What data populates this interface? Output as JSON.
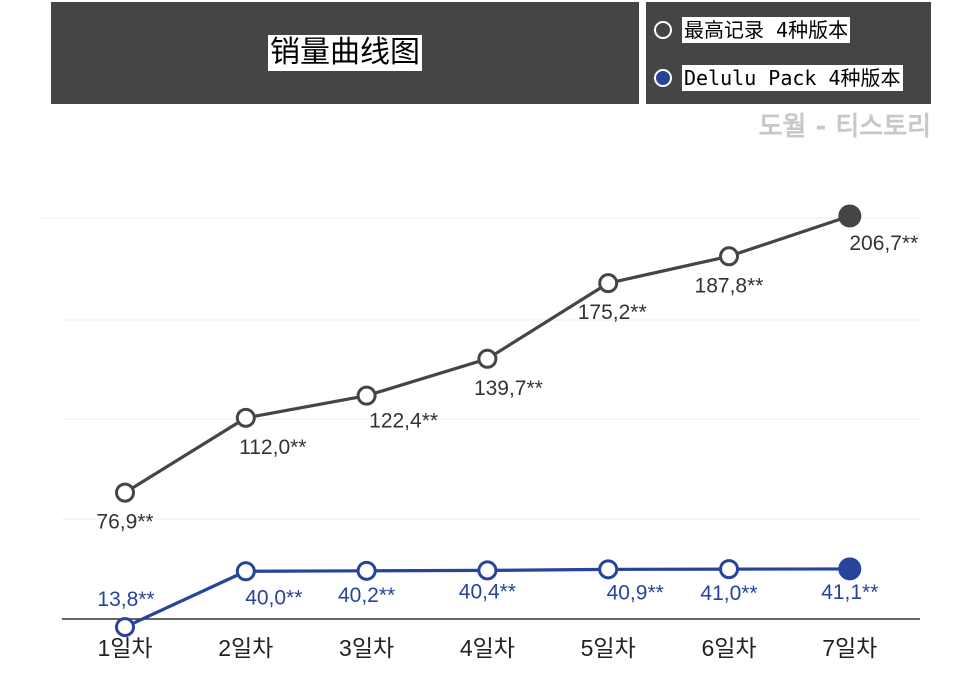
{
  "chart_data": {
    "type": "line",
    "title": "销量曲线图",
    "categories": [
      "1일차",
      "2일차",
      "3일차",
      "4일차",
      "5일차",
      "6일차",
      "7일차"
    ],
    "series": [
      {
        "name": "最高记录 4种版本",
        "color": "#454545",
        "values": [
          76.9,
          112.0,
          122.4,
          139.7,
          175.2,
          187.8,
          206.7
        ],
        "labels": [
          "76,9**",
          "112,0**",
          "122,4**",
          "139,7**",
          "175,2**",
          "187,8**",
          "206,7**"
        ]
      },
      {
        "name": "Delulu Pack 4种版本",
        "color": "#27449a",
        "values": [
          13.8,
          40.0,
          40.2,
          40.4,
          40.9,
          41.0,
          41.1
        ],
        "labels": [
          "13,8**",
          "40,0**",
          "40,2**",
          "40,4**",
          "40,9**",
          "41,0**",
          "41,1**"
        ]
      }
    ],
    "ylim": [
      0,
      240
    ],
    "grid": true,
    "legend_position": "top-right",
    "watermark": "도월 - 티스토리"
  }
}
